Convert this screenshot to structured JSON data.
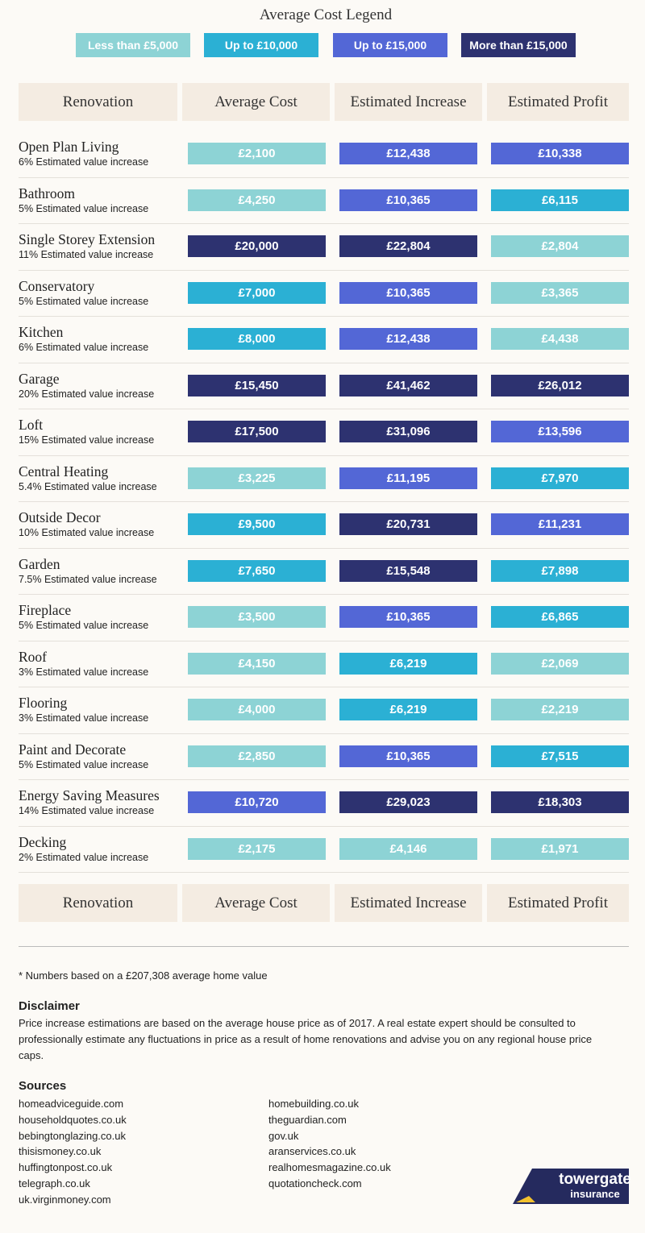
{
  "legend": {
    "title": "Average Cost Legend",
    "items": [
      {
        "label": "Less than £5,000",
        "color": "#8dd3d5"
      },
      {
        "label": "Up to £10,000",
        "color": "#2bb0d4"
      },
      {
        "label": "Up to £15,000",
        "color": "#5367d6"
      },
      {
        "label": "More than £15,000",
        "color": "#2d3270"
      }
    ]
  },
  "table": {
    "headers": [
      "Renovation",
      "Average Cost",
      "Estimated Increase",
      "Estimated Profit"
    ],
    "rows": [
      {
        "name": "Open Plan Living",
        "note": "6% Estimated value increase",
        "cells": [
          {
            "text": "£2,100",
            "color": "#8dd3d5"
          },
          {
            "text": "£12,438",
            "color": "#5367d6"
          },
          {
            "text": "£10,338",
            "color": "#5367d6"
          }
        ]
      },
      {
        "name": "Bathroom",
        "note": "5% Estimated value increase",
        "cells": [
          {
            "text": "£4,250",
            "color": "#8dd3d5"
          },
          {
            "text": "£10,365",
            "color": "#5367d6"
          },
          {
            "text": "£6,115",
            "color": "#2bb0d4"
          }
        ]
      },
      {
        "name": "Single Storey Extension",
        "note": "11% Estimated value increase",
        "cells": [
          {
            "text": "£20,000",
            "color": "#2d3270"
          },
          {
            "text": "£22,804",
            "color": "#2d3270"
          },
          {
            "text": "£2,804",
            "color": "#8dd3d5"
          }
        ]
      },
      {
        "name": "Conservatory",
        "note": "5% Estimated value increase",
        "cells": [
          {
            "text": "£7,000",
            "color": "#2bb0d4"
          },
          {
            "text": "£10,365",
            "color": "#5367d6"
          },
          {
            "text": "£3,365",
            "color": "#8dd3d5"
          }
        ]
      },
      {
        "name": "Kitchen",
        "note": "6% Estimated value increase",
        "cells": [
          {
            "text": "£8,000",
            "color": "#2bb0d4"
          },
          {
            "text": "£12,438",
            "color": "#5367d6"
          },
          {
            "text": "£4,438",
            "color": "#8dd3d5"
          }
        ]
      },
      {
        "name": "Garage",
        "note": "20% Estimated value increase",
        "cells": [
          {
            "text": "£15,450",
            "color": "#2d3270"
          },
          {
            "text": "£41,462",
            "color": "#2d3270"
          },
          {
            "text": "£26,012",
            "color": "#2d3270"
          }
        ]
      },
      {
        "name": "Loft",
        "note": "15% Estimated value increase",
        "cells": [
          {
            "text": "£17,500",
            "color": "#2d3270"
          },
          {
            "text": "£31,096",
            "color": "#2d3270"
          },
          {
            "text": "£13,596",
            "color": "#5367d6"
          }
        ]
      },
      {
        "name": "Central Heating",
        "note": "5.4% Estimated value increase",
        "cells": [
          {
            "text": "£3,225",
            "color": "#8dd3d5"
          },
          {
            "text": "£11,195",
            "color": "#5367d6"
          },
          {
            "text": "£7,970",
            "color": "#2bb0d4"
          }
        ]
      },
      {
        "name": "Outside Decor",
        "note": "10% Estimated value increase",
        "cells": [
          {
            "text": "£9,500",
            "color": "#2bb0d4"
          },
          {
            "text": "£20,731",
            "color": "#2d3270"
          },
          {
            "text": "£11,231",
            "color": "#5367d6"
          }
        ]
      },
      {
        "name": "Garden",
        "note": "7.5% Estimated value increase",
        "cells": [
          {
            "text": "£7,650",
            "color": "#2bb0d4"
          },
          {
            "text": "£15,548",
            "color": "#2d3270"
          },
          {
            "text": "£7,898",
            "color": "#2bb0d4"
          }
        ]
      },
      {
        "name": "Fireplace",
        "note": "5% Estimated value increase",
        "cells": [
          {
            "text": "£3,500",
            "color": "#8dd3d5"
          },
          {
            "text": "£10,365",
            "color": "#5367d6"
          },
          {
            "text": "£6,865",
            "color": "#2bb0d4"
          }
        ]
      },
      {
        "name": "Roof",
        "note": "3% Estimated value increase",
        "cells": [
          {
            "text": "£4,150",
            "color": "#8dd3d5"
          },
          {
            "text": "£6,219",
            "color": "#2bb0d4"
          },
          {
            "text": "£2,069",
            "color": "#8dd3d5"
          }
        ]
      },
      {
        "name": "Flooring",
        "note": "3% Estimated value increase",
        "cells": [
          {
            "text": "£4,000",
            "color": "#8dd3d5"
          },
          {
            "text": "£6,219",
            "color": "#2bb0d4"
          },
          {
            "text": "£2,219",
            "color": "#8dd3d5"
          }
        ]
      },
      {
        "name": "Paint and Decorate",
        "note": "5% Estimated value increase",
        "cells": [
          {
            "text": "£2,850",
            "color": "#8dd3d5"
          },
          {
            "text": "£10,365",
            "color": "#5367d6"
          },
          {
            "text": "£7,515",
            "color": "#2bb0d4"
          }
        ]
      },
      {
        "name": "Energy Saving Measures",
        "note": "14% Estimated value increase",
        "cells": [
          {
            "text": "£10,720",
            "color": "#5367d6"
          },
          {
            "text": "£29,023",
            "color": "#2d3270"
          },
          {
            "text": "£18,303",
            "color": "#2d3270"
          }
        ]
      },
      {
        "name": "Decking",
        "note": "2% Estimated value increase",
        "cells": [
          {
            "text": "£2,175",
            "color": "#8dd3d5"
          },
          {
            "text": "£4,146",
            "color": "#8dd3d5"
          },
          {
            "text": "£1,971",
            "color": "#8dd3d5"
          }
        ]
      }
    ]
  },
  "footnote": "* Numbers based on a £207,308 average home value",
  "disclaimer": {
    "title": "Disclaimer",
    "text": "Price increase estimations are based on the average house price as of 2017. A real estate expert should be consulted to professionally estimate any fluctuations in price as a result of home renovations and advise you on any regional house price caps."
  },
  "sources": {
    "title": "Sources",
    "columns": [
      [
        "homeadviceguide.com",
        "householdquotes.co.uk",
        "bebingtonglazing.co.uk",
        "thisismoney.co.uk",
        "huffingtonpost.co.uk",
        "telegraph.co.uk",
        "uk.virginmoney.com"
      ],
      [
        "homebuilding.co.uk",
        "theguardian.com",
        "gov.uk",
        "aranservices.co.uk",
        "realhomesmagazine.co.uk",
        "quotationcheck.com"
      ]
    ]
  },
  "logo": {
    "name": "towergate",
    "subtitle": "insurance"
  }
}
